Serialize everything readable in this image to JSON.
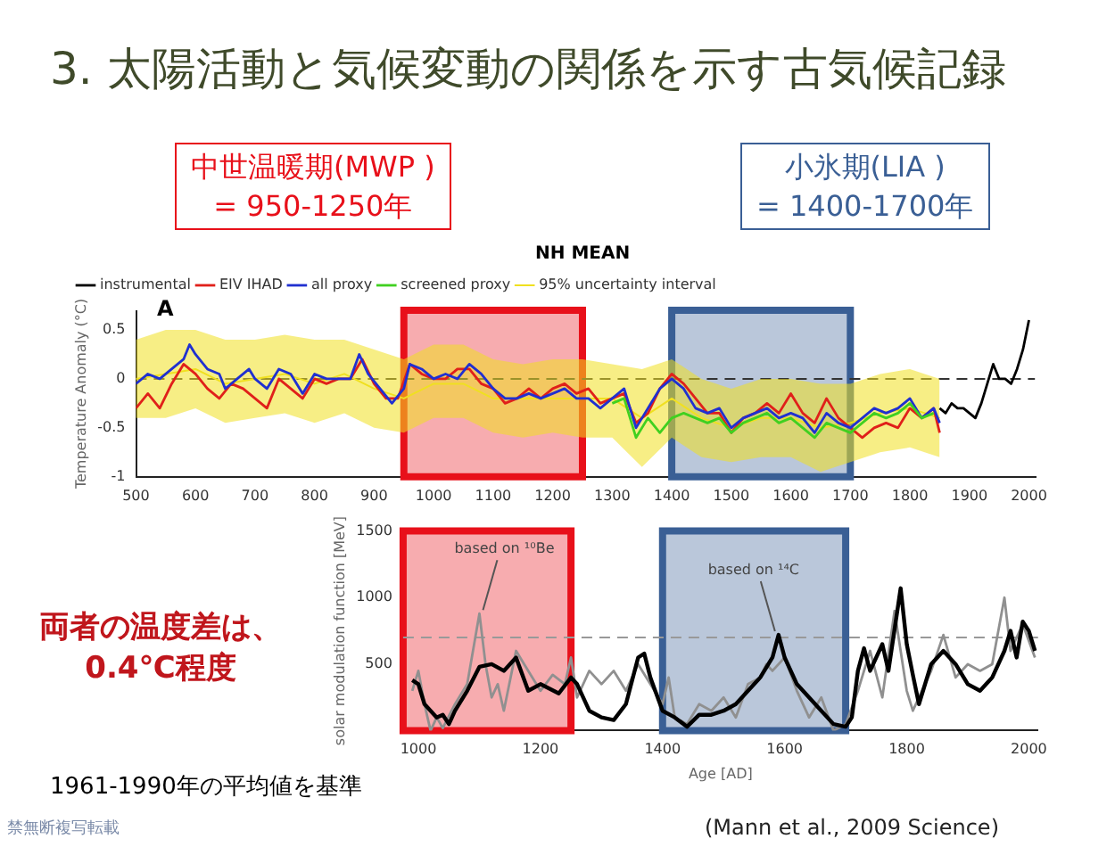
{
  "chart_data": [
    {
      "type": "line",
      "title": "3. 太陽活動と気候変動の関係を示す古気候記録",
      "subtitle": "NH MEAN",
      "ylabel": "Temperature Anomaly (°C)",
      "legend": "top",
      "marker": "none",
      "annotations": [
        "A",
        "両者の温度差は、\n0.4℃程度",
        "1961-1990年の平均値を基準",
        "(Mann et al., 2009 Science)",
        "禁無断複写転載"
      ],
      "xlim": [
        500,
        2010
      ],
      "ylim": [
        -1,
        0.7
      ],
      "xticks": [
        500,
        600,
        700,
        800,
        900,
        1000,
        1100,
        1200,
        1300,
        1400,
        1500,
        1600,
        1700,
        1800,
        1900,
        2000
      ],
      "yticks": [
        -1,
        -0.5,
        0,
        0.5
      ],
      "ref_lines": [
        {
          "axis": "y",
          "value": 0,
          "line_style": "dashed",
          "color": "#333333"
        }
      ],
      "bands": [
        {
          "axis": "x",
          "from": 950,
          "to": 1250,
          "label": "中世温暖期(MWP )\n= 950-1250年",
          "color": "#e8101a"
        },
        {
          "axis": "x",
          "from": 1400,
          "to": 1700,
          "label": "小氷期(LIA )\n= 1400-1700年",
          "color": "#3a5f95"
        }
      ],
      "series": [
        {
          "name": "instrumental",
          "color": "#000000",
          "x": [
            1850,
            1860,
            1870,
            1880,
            1890,
            1900,
            1910,
            1920,
            1930,
            1940,
            1950,
            1960,
            1970,
            1980,
            1990,
            2000
          ],
          "values": [
            -0.3,
            -0.35,
            -0.25,
            -0.3,
            -0.3,
            -0.35,
            -0.4,
            -0.25,
            -0.05,
            0.15,
            0,
            0,
            -0.05,
            0.1,
            0.3,
            0.6
          ]
        },
        {
          "name": "EIV IHAD",
          "color": "#e0201a",
          "x": [
            500,
            520,
            540,
            560,
            580,
            600,
            620,
            640,
            660,
            680,
            700,
            720,
            740,
            760,
            780,
            800,
            820,
            840,
            860,
            880,
            900,
            920,
            940,
            960,
            980,
            1000,
            1020,
            1040,
            1060,
            1080,
            1100,
            1120,
            1140,
            1160,
            1180,
            1200,
            1220,
            1240,
            1260,
            1280,
            1300,
            1320,
            1340,
            1360,
            1380,
            1400,
            1420,
            1440,
            1460,
            1480,
            1500,
            1520,
            1540,
            1560,
            1580,
            1600,
            1620,
            1640,
            1660,
            1680,
            1700,
            1720,
            1740,
            1760,
            1780,
            1800,
            1820,
            1840,
            1850
          ],
          "values": [
            -0.3,
            -0.15,
            -0.3,
            -0.05,
            0.15,
            0.05,
            -0.1,
            -0.2,
            -0.05,
            -0.1,
            -0.2,
            -0.3,
            0,
            -0.1,
            -0.2,
            0,
            -0.05,
            0,
            0,
            0.2,
            -0.05,
            -0.2,
            -0.2,
            0.15,
            0.05,
            0,
            0,
            0.1,
            0.1,
            -0.05,
            -0.1,
            -0.25,
            -0.2,
            -0.1,
            -0.2,
            -0.1,
            -0.05,
            -0.15,
            -0.1,
            -0.25,
            -0.2,
            -0.15,
            -0.45,
            -0.35,
            -0.1,
            0.05,
            -0.05,
            -0.2,
            -0.35,
            -0.35,
            -0.55,
            -0.4,
            -0.35,
            -0.25,
            -0.35,
            -0.15,
            -0.35,
            -0.45,
            -0.2,
            -0.4,
            -0.5,
            -0.6,
            -0.5,
            -0.45,
            -0.5,
            -0.3,
            -0.4,
            -0.3,
            -0.55
          ]
        },
        {
          "name": "all proxy",
          "color": "#2030d0",
          "x": [
            500,
            520,
            540,
            560,
            580,
            590,
            600,
            620,
            640,
            650,
            670,
            690,
            700,
            720,
            740,
            760,
            780,
            800,
            820,
            840,
            860,
            875,
            890,
            910,
            930,
            950,
            960,
            980,
            1000,
            1020,
            1040,
            1060,
            1080,
            1100,
            1120,
            1140,
            1160,
            1180,
            1200,
            1220,
            1240,
            1260,
            1280,
            1300,
            1320,
            1340,
            1360,
            1380,
            1400,
            1420,
            1440,
            1460,
            1480,
            1500,
            1520,
            1540,
            1560,
            1580,
            1600,
            1620,
            1640,
            1660,
            1680,
            1700,
            1720,
            1740,
            1760,
            1780,
            1800,
            1820,
            1840,
            1850
          ],
          "values": [
            -0.05,
            0.05,
            0,
            0.1,
            0.2,
            0.35,
            0.25,
            0.1,
            0.05,
            -0.1,
            0,
            0.1,
            0,
            -0.1,
            0.1,
            0.05,
            -0.15,
            0.05,
            0,
            0,
            0,
            0.25,
            0.05,
            -0.1,
            -0.25,
            -0.1,
            0.15,
            0.1,
            0,
            0.05,
            0,
            0.15,
            0.05,
            -0.1,
            -0.2,
            -0.2,
            -0.15,
            -0.2,
            -0.15,
            -0.1,
            -0.2,
            -0.2,
            -0.3,
            -0.2,
            -0.1,
            -0.5,
            -0.3,
            -0.1,
            0,
            -0.1,
            -0.3,
            -0.35,
            -0.3,
            -0.5,
            -0.4,
            -0.35,
            -0.3,
            -0.4,
            -0.35,
            -0.4,
            -0.55,
            -0.35,
            -0.45,
            -0.5,
            -0.4,
            -0.3,
            -0.35,
            -0.3,
            -0.2,
            -0.4,
            -0.3,
            -0.45
          ]
        },
        {
          "name": "screened proxy",
          "color": "#40d020",
          "x": [
            1300,
            1320,
            1340,
            1360,
            1380,
            1400,
            1420,
            1440,
            1460,
            1480,
            1500,
            1520,
            1540,
            1560,
            1580,
            1600,
            1620,
            1640,
            1660,
            1680,
            1700,
            1720,
            1740,
            1760,
            1780,
            1800,
            1820,
            1840
          ],
          "values": [
            -0.25,
            -0.2,
            -0.6,
            -0.4,
            -0.55,
            -0.4,
            -0.35,
            -0.4,
            -0.45,
            -0.4,
            -0.55,
            -0.45,
            -0.4,
            -0.35,
            -0.45,
            -0.4,
            -0.5,
            -0.6,
            -0.45,
            -0.5,
            -0.55,
            -0.45,
            -0.35,
            -0.4,
            -0.35,
            -0.25,
            -0.4,
            -0.35
          ]
        },
        {
          "name": "95% uncertainty interval",
          "color": "#f0e020",
          "x": [
            500,
            550,
            600,
            650,
            700,
            750,
            800,
            850,
            900,
            950,
            1000,
            1050,
            1100,
            1150,
            1200,
            1250,
            1300,
            1350,
            1400,
            1450,
            1500,
            1550,
            1600,
            1650,
            1700,
            1750,
            1800,
            1850
          ],
          "values": [
            0,
            0.05,
            0.1,
            -0.05,
            0,
            0.05,
            -0.05,
            0.05,
            -0.1,
            -0.2,
            -0.05,
            -0.05,
            -0.2,
            -0.2,
            -0.2,
            -0.2,
            -0.2,
            -0.4,
            -0.2,
            -0.4,
            -0.5,
            -0.4,
            -0.4,
            -0.5,
            -0.45,
            -0.35,
            -0.3,
            -0.4
          ],
          "lower": [
            -0.4,
            -0.4,
            -0.3,
            -0.45,
            -0.4,
            -0.35,
            -0.45,
            -0.35,
            -0.5,
            -0.55,
            -0.4,
            -0.4,
            -0.55,
            -0.6,
            -0.55,
            -0.6,
            -0.6,
            -0.9,
            -0.6,
            -0.8,
            -0.85,
            -0.8,
            -0.8,
            -0.95,
            -0.85,
            -0.75,
            -0.7,
            -0.8
          ],
          "upper": [
            0.4,
            0.5,
            0.5,
            0.4,
            0.4,
            0.45,
            0.4,
            0.4,
            0.3,
            0.2,
            0.35,
            0.35,
            0.2,
            0.15,
            0.2,
            0.2,
            0.15,
            0.1,
            0.2,
            0,
            -0.1,
            0,
            0,
            -0.05,
            -0.05,
            0.05,
            0.1,
            0
          ]
        }
      ]
    },
    {
      "type": "line",
      "ylabel": "solar modulation function [MeV]",
      "xlabel": "Age [AD]",
      "marker": "none",
      "annotations": [
        {
          "text": "based on ¹⁰Be",
          "x": 1100,
          "y": 880
        },
        {
          "text": "based on ¹⁴C",
          "x": 1590,
          "y": 720
        }
      ],
      "xlim": [
        975,
        2015
      ],
      "ylim": [
        0,
        1500
      ],
      "xticks": [
        1000,
        1200,
        1400,
        1600,
        1800,
        2000
      ],
      "yticks": [
        500,
        1000,
        1500
      ],
      "ref_lines": [
        {
          "axis": "y",
          "value": 700,
          "line_style": "dashed",
          "color": "#999999"
        }
      ],
      "bands": [
        {
          "axis": "x",
          "from": 950,
          "to": 1250,
          "color": "#e8101a"
        },
        {
          "axis": "x",
          "from": 1400,
          "to": 1700,
          "color": "#3a5f95"
        }
      ],
      "series": [
        {
          "color": "#909090",
          "x": [
            990,
            1000,
            1010,
            1020,
            1030,
            1040,
            1060,
            1080,
            1100,
            1110,
            1120,
            1130,
            1140,
            1160,
            1180,
            1200,
            1220,
            1240,
            1250,
            1260,
            1280,
            1300,
            1320,
            1340,
            1360,
            1380,
            1400,
            1410,
            1420,
            1440,
            1460,
            1480,
            1500,
            1520,
            1540,
            1560,
            1570,
            1580,
            1600,
            1620,
            1640,
            1660,
            1680,
            1700,
            1720,
            1740,
            1760,
            1780,
            1800,
            1810,
            1840,
            1860,
            1880,
            1900,
            1920,
            1940,
            1960,
            1970,
            1990,
            2010
          ],
          "values": [
            300,
            450,
            200,
            0,
            100,
            20,
            200,
            350,
            880,
            500,
            250,
            350,
            150,
            600,
            450,
            300,
            420,
            350,
            550,
            250,
            450,
            350,
            450,
            300,
            500,
            350,
            200,
            400,
            100,
            50,
            200,
            150,
            250,
            100,
            350,
            400,
            500,
            450,
            550,
            300,
            100,
            250,
            0,
            50,
            300,
            600,
            250,
            900,
            300,
            150,
            450,
            720,
            400,
            500,
            450,
            500,
            1000,
            600,
            800,
            550
          ]
        },
        {
          "color": "#000000",
          "x": [
            990,
            1000,
            1010,
            1020,
            1030,
            1040,
            1050,
            1060,
            1080,
            1100,
            1120,
            1140,
            1160,
            1180,
            1200,
            1230,
            1250,
            1260,
            1280,
            1300,
            1320,
            1340,
            1360,
            1370,
            1380,
            1400,
            1420,
            1440,
            1460,
            1480,
            1500,
            1520,
            1540,
            1560,
            1580,
            1590,
            1600,
            1620,
            1640,
            1660,
            1680,
            1700,
            1710,
            1720,
            1730,
            1740,
            1760,
            1770,
            1790,
            1800,
            1810,
            1820,
            1840,
            1860,
            1880,
            1900,
            1920,
            1940,
            1960,
            1970,
            1980,
            1990,
            2000,
            2010
          ],
          "values": [
            380,
            350,
            200,
            150,
            100,
            120,
            50,
            150,
            300,
            480,
            500,
            450,
            550,
            300,
            350,
            280,
            400,
            350,
            150,
            100,
            80,
            200,
            550,
            580,
            400,
            150,
            100,
            30,
            120,
            120,
            150,
            200,
            300,
            400,
            550,
            720,
            550,
            350,
            250,
            150,
            50,
            30,
            100,
            450,
            620,
            450,
            650,
            450,
            1070,
            650,
            420,
            200,
            500,
            600,
            500,
            350,
            300,
            400,
            600,
            750,
            550,
            820,
            750,
            600
          ]
        }
      ]
    }
  ]
}
